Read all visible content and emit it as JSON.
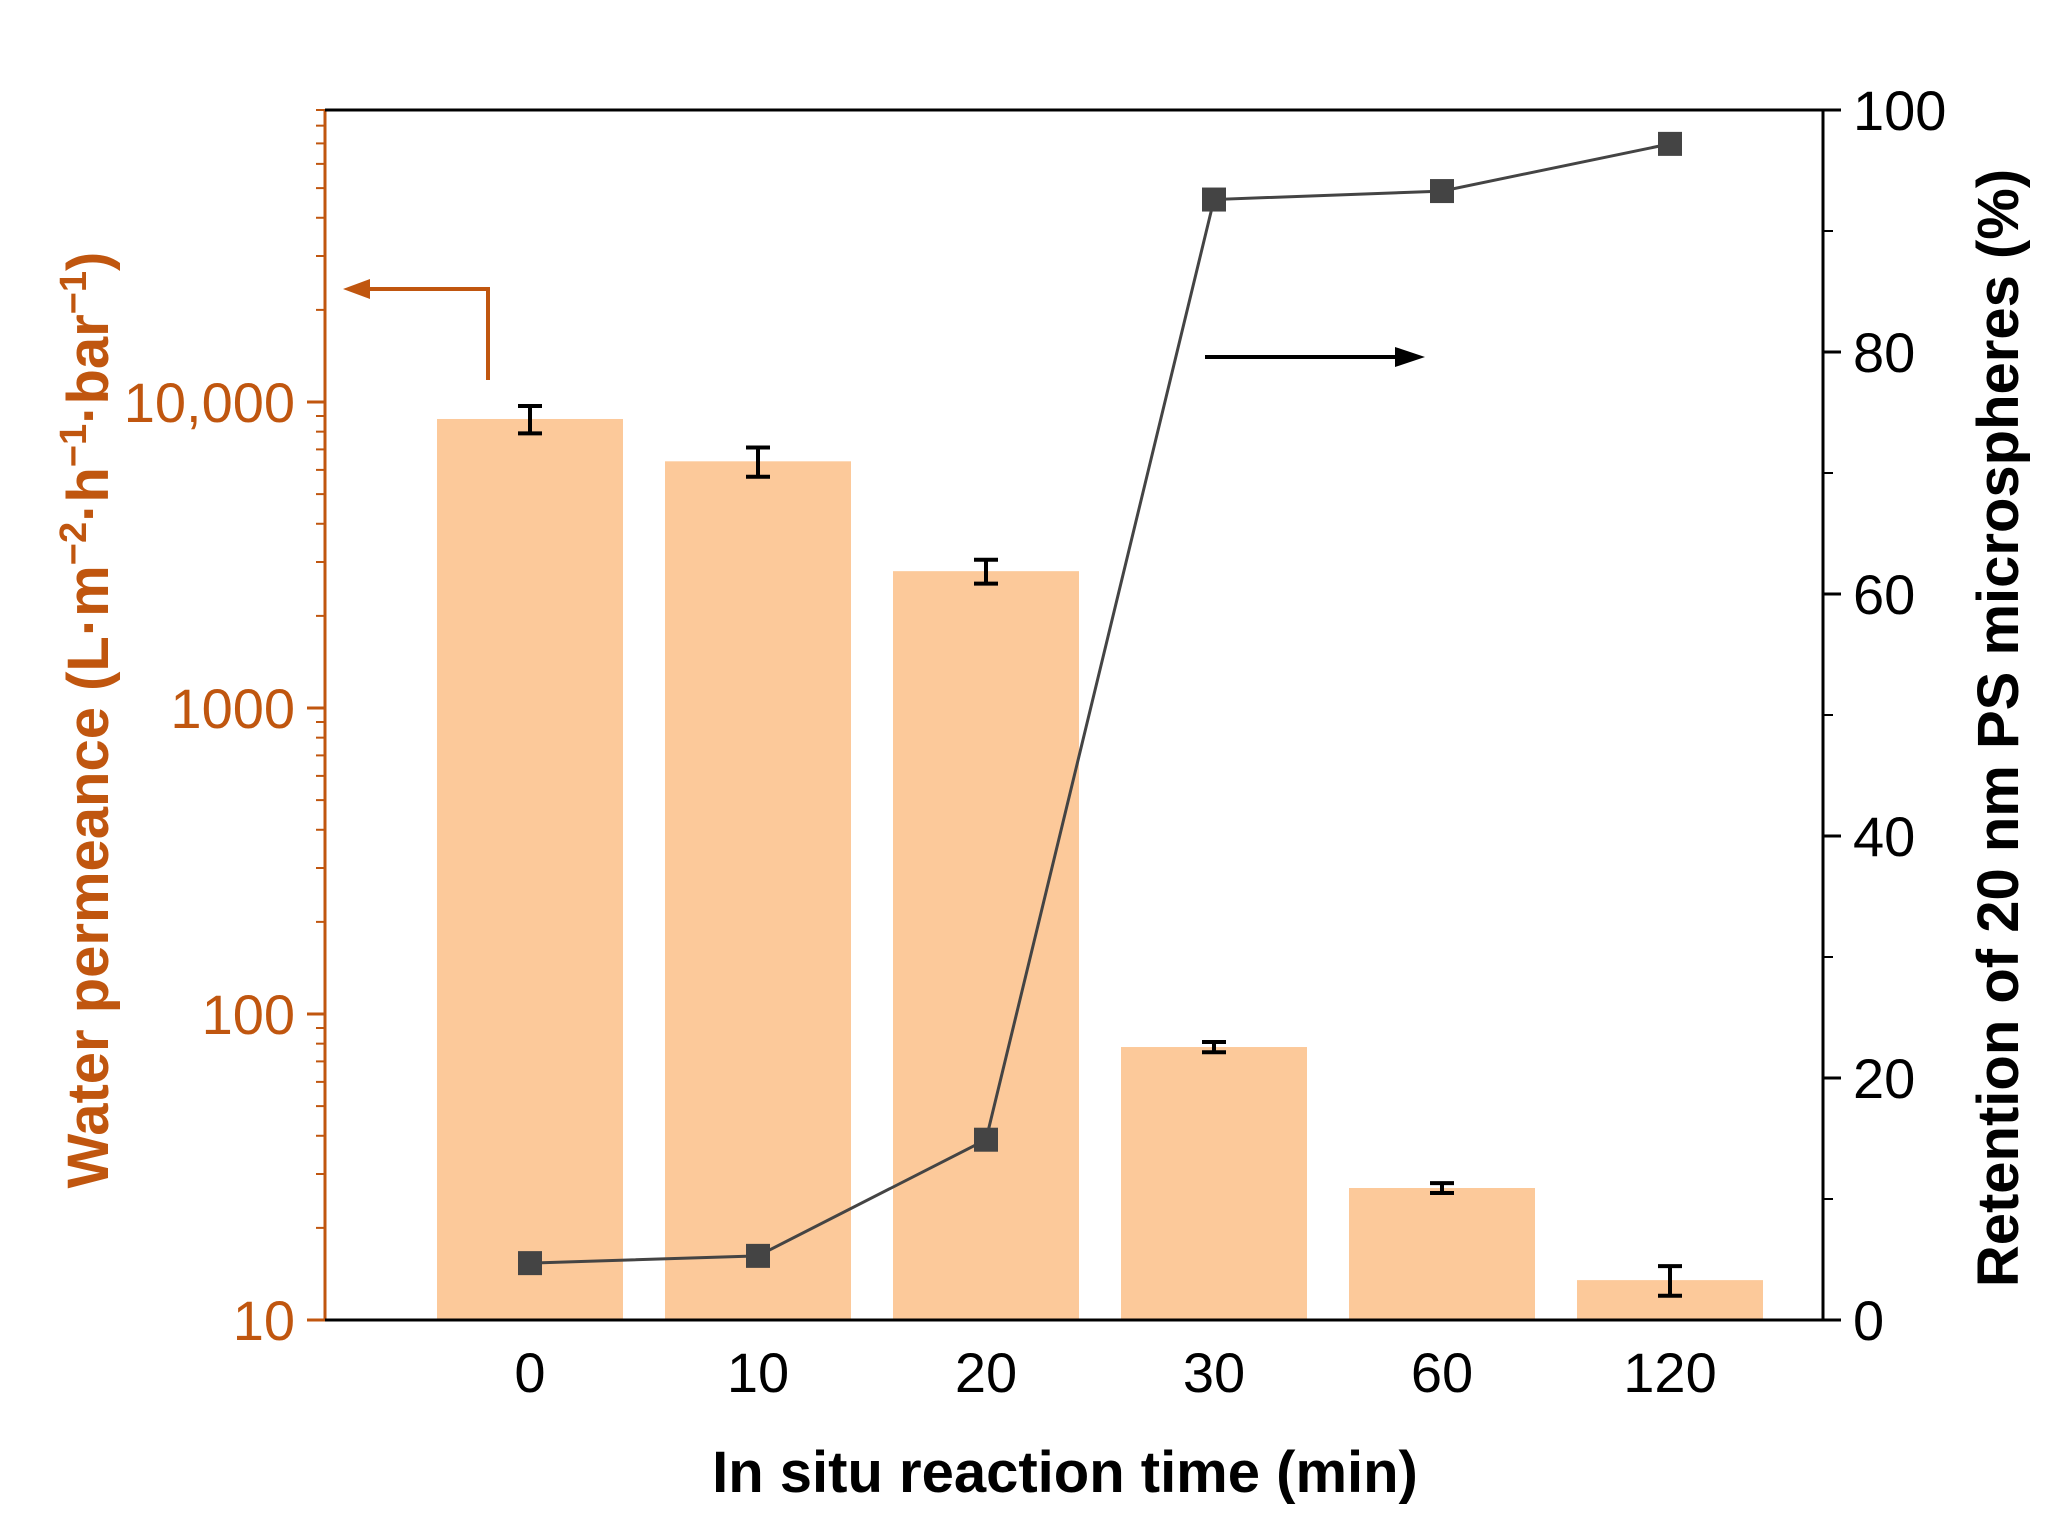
{
  "chart_data": {
    "type": "bar",
    "categories": [
      "0",
      "10",
      "20",
      "30",
      "60",
      "120"
    ],
    "xlabel": "In situ reaction time (min)",
    "ylabel_left": {
      "prefix": "Water permeance (L·m",
      "sup1": "−2",
      "mid1": "·h",
      "sup2": "−1",
      "mid2": "·bar",
      "sup3": "−1",
      "suffix": ")"
    },
    "ylabel_right": "Retention of 20 nm PS microspheres (%)",
    "left_axis": {
      "scale": "log",
      "ylim": [
        10,
        90000
      ],
      "ticks": [
        10,
        100,
        1000,
        10000
      ],
      "tick_labels": [
        "10",
        "100",
        "1000",
        "10,000"
      ],
      "color": "#c0560f"
    },
    "right_axis": {
      "scale": "linear",
      "ylim": [
        0,
        100
      ],
      "ticks": [
        0,
        20,
        40,
        60,
        80,
        100
      ],
      "tick_labels": [
        "0",
        "20",
        "40",
        "60",
        "80",
        "100"
      ]
    },
    "series": [
      {
        "type": "bar",
        "axis": "left",
        "values": [
          8800,
          6400,
          2800,
          78,
          27,
          13.5
        ],
        "error": [
          900,
          700,
          250,
          3,
          1,
          1.5
        ],
        "color": "#fcc99a"
      },
      {
        "type": "line",
        "axis": "right",
        "values": [
          4.7,
          5.3,
          14.9,
          92.6,
          93.3,
          97.2
        ],
        "color": "#444444"
      }
    ],
    "annotations": [
      {
        "type": "arrow",
        "direction": "left",
        "meaning": "bars use left axis",
        "color": "#c0560f"
      },
      {
        "type": "arrow",
        "direction": "right",
        "meaning": "line uses right axis",
        "color": "#000000"
      }
    ],
    "grid": false,
    "legend": "none"
  }
}
